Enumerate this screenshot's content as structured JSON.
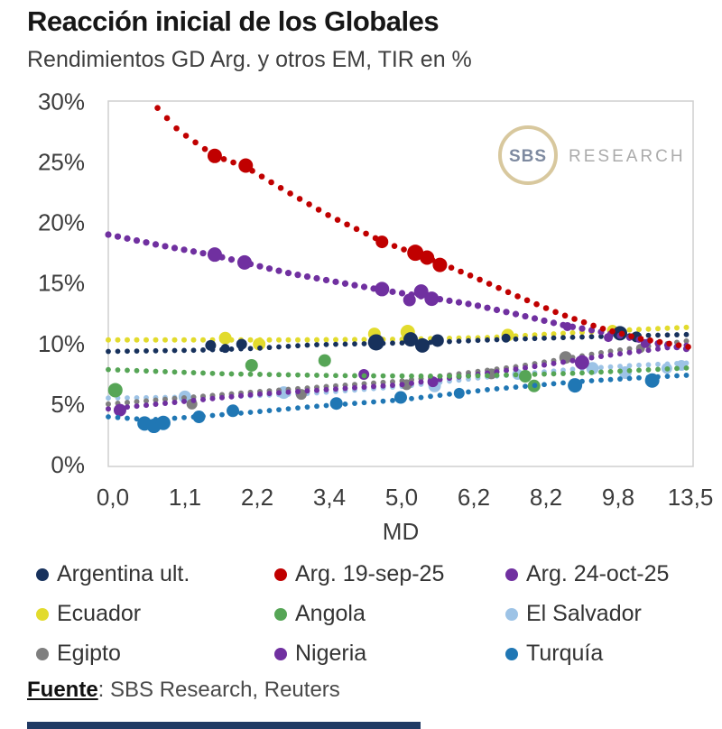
{
  "header": {
    "title": "Reacción inicial de los Globales",
    "subtitle": "Rendimientos GD Arg. y otros EM, TIR en %"
  },
  "logo": {
    "circle_text": "SBS",
    "side_text": "RESEARCH"
  },
  "footer": {
    "source_label": "Fuente",
    "source_rest": ": SBS Research, Reuters"
  },
  "chart_data": {
    "type": "scatter",
    "title": "Reacción inicial de los Globales",
    "subtitle": "Rendimientos GD Arg. y otros EM, TIR en %",
    "xlabel": "MD",
    "ylabel": "TIR en %",
    "ylim": [
      0,
      30
    ],
    "grid": false,
    "legend_position": "bottom",
    "x_tick_labels": [
      "0,0",
      "1,1",
      "2,2",
      "3,4",
      "5,0",
      "6,2",
      "8,2",
      "9,8",
      "13,5"
    ],
    "x_axis_note": "ticks equally pixel-spaced; x stored as fraction 0-1 of axis width",
    "y_ticks": [
      {
        "v": 0,
        "label": "0%"
      },
      {
        "v": 5,
        "label": "5%"
      },
      {
        "v": 10,
        "label": "10%"
      },
      {
        "v": 15,
        "label": "15%"
      },
      {
        "v": 20,
        "label": "20%"
      },
      {
        "v": 25,
        "label": "25%"
      },
      {
        "v": 30,
        "label": "30%"
      }
    ],
    "draw_order": [
      5,
      6,
      7,
      4,
      8,
      3,
      0,
      2,
      1
    ],
    "series": [
      {
        "name": "Argentina ult.",
        "color": "#17315c",
        "trend_dot": 2.9,
        "trend": [
          [
            0.0,
            9.35
          ],
          [
            0.15,
            9.45
          ],
          [
            0.25,
            9.6
          ],
          [
            0.35,
            9.9
          ],
          [
            0.45,
            10.0
          ],
          [
            0.55,
            10.1
          ],
          [
            0.65,
            10.3
          ],
          [
            0.75,
            10.45
          ],
          [
            0.85,
            10.6
          ],
          [
            0.995,
            10.75
          ]
        ],
        "points": [
          [
            0.175,
            9.85,
            6
          ],
          [
            0.2,
            9.6,
            5
          ],
          [
            0.228,
            9.95,
            6
          ],
          [
            0.458,
            10.1,
            9
          ],
          [
            0.517,
            10.35,
            8
          ],
          [
            0.537,
            9.85,
            8
          ],
          [
            0.563,
            10.25,
            7
          ],
          [
            0.68,
            10.45,
            5
          ],
          [
            0.875,
            10.85,
            8
          ],
          [
            0.903,
            10.55,
            6
          ]
        ]
      },
      {
        "name": "Arg. 19-sep-25",
        "color": "#c00000",
        "trend_dot": 3.3,
        "trend": [
          [
            0.068,
            30.3
          ],
          [
            0.12,
            27.6
          ],
          [
            0.182,
            25.5
          ],
          [
            0.235,
            24.6
          ],
          [
            0.3,
            22.7
          ],
          [
            0.38,
            20.5
          ],
          [
            0.47,
            18.4
          ],
          [
            0.56,
            16.8
          ],
          [
            0.625,
            15.5
          ],
          [
            0.7,
            13.9
          ],
          [
            0.77,
            12.5
          ],
          [
            0.84,
            11.3
          ],
          [
            0.91,
            10.4
          ],
          [
            0.995,
            9.7
          ]
        ],
        "points": [
          [
            0.182,
            25.5,
            8
          ],
          [
            0.235,
            24.7,
            8
          ],
          [
            0.468,
            18.4,
            7
          ],
          [
            0.525,
            17.5,
            9
          ],
          [
            0.545,
            17.1,
            8
          ],
          [
            0.567,
            16.5,
            8
          ]
        ]
      },
      {
        "name": "Arg. 24-oct-25",
        "color": "#7030a0",
        "trend_dot": 3.6,
        "trend": [
          [
            0.0,
            19.0
          ],
          [
            0.09,
            18.1
          ],
          [
            0.18,
            17.3
          ],
          [
            0.24,
            16.6
          ],
          [
            0.31,
            15.8
          ],
          [
            0.4,
            15.0
          ],
          [
            0.47,
            14.4
          ],
          [
            0.55,
            13.8
          ],
          [
            0.625,
            13.2
          ],
          [
            0.7,
            12.4
          ],
          [
            0.78,
            11.5
          ],
          [
            0.85,
            10.9
          ],
          [
            0.92,
            10.2
          ],
          [
            0.995,
            9.5
          ]
        ],
        "points": [
          [
            0.182,
            17.35,
            8
          ],
          [
            0.233,
            16.7,
            8
          ],
          [
            0.468,
            14.5,
            8
          ],
          [
            0.515,
            13.6,
            7
          ],
          [
            0.535,
            14.3,
            8
          ],
          [
            0.553,
            13.7,
            8
          ],
          [
            0.785,
            11.4,
            5
          ],
          [
            0.855,
            10.5,
            5
          ],
          [
            0.918,
            10.0,
            5
          ]
        ]
      },
      {
        "name": "Ecuador",
        "color": "#e2db2d",
        "trend_dot": 3.0,
        "trend": [
          [
            0.0,
            10.3
          ],
          [
            0.3,
            10.3
          ],
          [
            0.5,
            10.35
          ],
          [
            0.65,
            10.5
          ],
          [
            0.8,
            10.9
          ],
          [
            0.9,
            11.15
          ],
          [
            0.995,
            11.35
          ]
        ],
        "points": [
          [
            0.2,
            10.45,
            7
          ],
          [
            0.258,
            9.95,
            7
          ],
          [
            0.455,
            10.8,
            7
          ],
          [
            0.512,
            10.95,
            8
          ],
          [
            0.683,
            10.7,
            7
          ],
          [
            0.862,
            11.1,
            6
          ]
        ]
      },
      {
        "name": "Angola",
        "color": "#56a556",
        "trend_dot": 2.9,
        "trend": [
          [
            0.0,
            7.85
          ],
          [
            0.2,
            7.5
          ],
          [
            0.4,
            7.35
          ],
          [
            0.6,
            7.3
          ],
          [
            0.8,
            7.55
          ],
          [
            0.995,
            8.0
          ]
        ],
        "points": [
          [
            0.012,
            6.15,
            8
          ],
          [
            0.245,
            8.2,
            7
          ],
          [
            0.37,
            8.6,
            7
          ],
          [
            0.713,
            7.3,
            7
          ],
          [
            0.728,
            6.5,
            7
          ]
        ]
      },
      {
        "name": "El Salvador",
        "color": "#9dc3e6",
        "trend_dot": 2.9,
        "trend": [
          [
            0.0,
            5.5
          ],
          [
            0.2,
            5.6
          ],
          [
            0.35,
            5.9
          ],
          [
            0.5,
            6.45
          ],
          [
            0.65,
            7.25
          ],
          [
            0.8,
            7.9
          ],
          [
            0.9,
            8.2
          ],
          [
            0.995,
            8.4
          ]
        ],
        "points": [
          [
            0.131,
            5.6,
            7
          ],
          [
            0.3,
            5.95,
            7
          ],
          [
            0.558,
            6.5,
            7
          ],
          [
            0.7,
            7.45,
            6
          ],
          [
            0.828,
            7.95,
            7
          ],
          [
            0.884,
            7.6,
            7
          ],
          [
            0.955,
            7.95,
            6
          ],
          [
            0.98,
            8.2,
            6
          ]
        ]
      },
      {
        "name": "Egipto",
        "color": "#7f7f7f",
        "trend_dot": 3.0,
        "trend": [
          [
            0.0,
            5.0
          ],
          [
            0.25,
            6.0
          ],
          [
            0.5,
            6.9
          ],
          [
            0.7,
            8.1
          ],
          [
            0.85,
            9.3
          ],
          [
            0.995,
            10.25
          ]
        ],
        "points": [
          [
            0.143,
            5.0,
            6
          ],
          [
            0.33,
            5.8,
            6
          ],
          [
            0.51,
            6.6,
            6
          ],
          [
            0.655,
            7.5,
            6
          ],
          [
            0.782,
            8.85,
            7
          ],
          [
            0.91,
            9.6,
            5
          ]
        ]
      },
      {
        "name": "Nigeria",
        "color": "#7030a0",
        "trend_dot": 3.0,
        "trend": [
          [
            0.0,
            4.6
          ],
          [
            0.25,
            5.8
          ],
          [
            0.5,
            6.6
          ],
          [
            0.7,
            7.9
          ],
          [
            0.85,
            9.0
          ],
          [
            0.995,
            9.9
          ]
        ],
        "points": [
          [
            0.02,
            4.5,
            7
          ],
          [
            0.437,
            7.45,
            6
          ],
          [
            0.555,
            6.85,
            6
          ],
          [
            0.81,
            8.45,
            8
          ]
        ]
      },
      {
        "name": "Turquía",
        "color": "#2077b4",
        "trend_dot": 2.9,
        "trend": [
          [
            0.0,
            3.95
          ],
          [
            0.07,
            3.7
          ],
          [
            0.15,
            3.95
          ],
          [
            0.25,
            4.35
          ],
          [
            0.35,
            4.8
          ],
          [
            0.5,
            5.35
          ],
          [
            0.65,
            6.2
          ],
          [
            0.8,
            6.85
          ],
          [
            0.9,
            7.15
          ],
          [
            0.995,
            7.4
          ]
        ],
        "points": [
          [
            0.062,
            3.4,
            8
          ],
          [
            0.078,
            3.2,
            8
          ],
          [
            0.094,
            3.45,
            8
          ],
          [
            0.155,
            3.95,
            7
          ],
          [
            0.213,
            4.45,
            7
          ],
          [
            0.39,
            5.05,
            7
          ],
          [
            0.5,
            5.55,
            7
          ],
          [
            0.6,
            5.9,
            6
          ],
          [
            0.798,
            6.55,
            8
          ],
          [
            0.93,
            6.95,
            8
          ]
        ]
      }
    ],
    "watermark": {
      "circle_text": "SBS",
      "side_text": "RESEARCH",
      "ring_color": "#d8c89e"
    }
  }
}
